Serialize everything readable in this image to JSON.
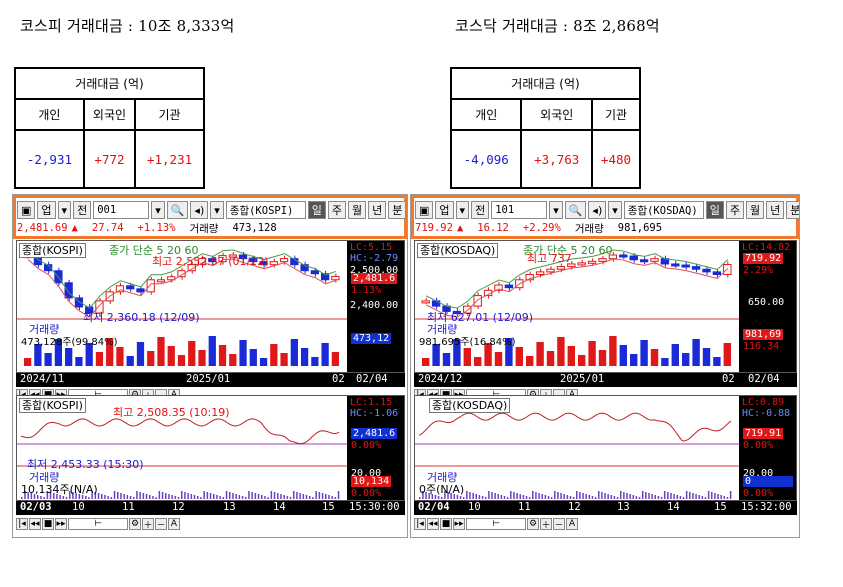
{
  "kospi_headline": "코스피 거래대금 : 10조 8,333억",
  "kosdaq_headline": "코스닥 거래대금 : 8조 2,868억",
  "kospi_table": {
    "title": "거래대금 (억)",
    "cols": [
      "개인",
      "외국인",
      "기관"
    ],
    "vals": [
      "-2,931",
      "+772",
      "+1,231"
    ]
  },
  "kosdaq_table": {
    "title": "거래대금 (억)",
    "cols": [
      "개인",
      "외국인",
      "기관"
    ],
    "vals": [
      "-4,096",
      "+3,763",
      "+480"
    ]
  },
  "left": {
    "toolbar": {
      "seg": "업",
      "jeon": "전",
      "code": "001",
      "name": "종합(KOSPI)",
      "periods": [
        "일",
        "주",
        "월",
        "년",
        "분",
        "초"
      ]
    },
    "price": {
      "idx": "2,481.69",
      "arrow": "▲",
      "chg": "27.74",
      "pct": "+1.13%",
      "vol_label": "거래량",
      "vol": "473,128"
    },
    "daily": {
      "name": "종합(KOSPI)",
      "ma": "종가 단순 5 20 60",
      "high": "최고 2,552.57 (01/22)",
      "low": "최저 2,360.18 (12/09)",
      "lc": "LC:5.15",
      "hc": "HC:-2.79",
      "y1": "2,500.00",
      "cur": "2,481.6",
      "pctchg": "1.13%",
      "y2": "2,400.00",
      "vol_name": "거래량",
      "vol_text": "473,128주(99.84%)",
      "vol_tag": "473,12",
      "dates": [
        "2024/11",
        "2025/01",
        "02",
        "02/04"
      ]
    },
    "intraday": {
      "name": "종합(KOSPI)",
      "high": "최고 2,508.35 (10:19)",
      "low": "최저 2,453.33 (15:30)",
      "lc": "LC:1.15",
      "hc": "HC:-1.06",
      "cur": "2,481.6",
      "pctchg": "0.00%",
      "vol_name": "거래량",
      "vol_text": "10,134주(N/A)",
      "vol_top": "20,00",
      "vol_tag": "10,134",
      "vol_pct": "0.00%",
      "times": [
        "02/03",
        "10",
        "11",
        "12",
        "13",
        "14",
        "15",
        "15:30:00"
      ]
    }
  },
  "right": {
    "toolbar": {
      "seg": "업",
      "jeon": "전",
      "code": "101",
      "name": "종합(KOSDAQ)",
      "periods": [
        "일",
        "주",
        "월",
        "년",
        "분",
        "초"
      ]
    },
    "price": {
      "idx": "719.92",
      "arrow": "▲",
      "chg": "16.12",
      "pct": "+2.29%",
      "vol_label": "거래량",
      "vol": "981,695"
    },
    "daily": {
      "name": "종합(KOSDAQ)",
      "ma": "종가 단순 5 20 60",
      "high": "최고 737",
      "low": "최저 627.01 (12/09)",
      "lc": "LC:14.82",
      "hc": "",
      "y1": "719.92",
      "cur": "",
      "pctchg": "2.29%",
      "y2": "650.00",
      "vol_name": "거래량",
      "vol_text": "981,695주(16.84%)",
      "vol_tag": "981,69",
      "vol_pct": "116.34",
      "dates": [
        "2024/12",
        "2025/01",
        "02",
        "02/04"
      ]
    },
    "intraday": {
      "name": "종합(KOSDAQ)",
      "high": "",
      "low": "",
      "lc": "LC:0.89",
      "hc": "HC:-0.88",
      "cur": "719.91",
      "pctchg": "0.00%",
      "vol_name": "거래량",
      "vol_text": "0주(N/A)",
      "vol_top": "20,00",
      "vol_tag": "0",
      "vol_pct": "0.00%",
      "times": [
        "02/04",
        "10",
        "11",
        "12",
        "13",
        "14",
        "15",
        "15:32:00"
      ]
    }
  },
  "chart_data": [
    {
      "type": "line",
      "title": "",
      "series": [
        {
          "name": "종합(KOSPI) daily",
          "values": [
            2550,
            2520,
            2500,
            2460,
            2410,
            2380,
            2360,
            2400,
            2430,
            2450,
            2440,
            2430,
            2470,
            2470,
            2480,
            2500,
            2520,
            2540,
            2530,
            2550,
            2552,
            2540,
            2530,
            2520,
            2530,
            2540,
            2520,
            2500,
            2490,
            2470,
            2481
          ]
        }
      ]
    },
    {
      "type": "line",
      "title": "",
      "series": [
        {
          "name": "종합(KOSDAQ) daily",
          "values": [
            650,
            640,
            630,
            627,
            640,
            660,
            670,
            680,
            675,
            690,
            700,
            705,
            710,
            715,
            720,
            722,
            725,
            730,
            737,
            735,
            728,
            725,
            730,
            720,
            718,
            715,
            710,
            705,
            700,
            719
          ]
        }
      ]
    }
  ]
}
